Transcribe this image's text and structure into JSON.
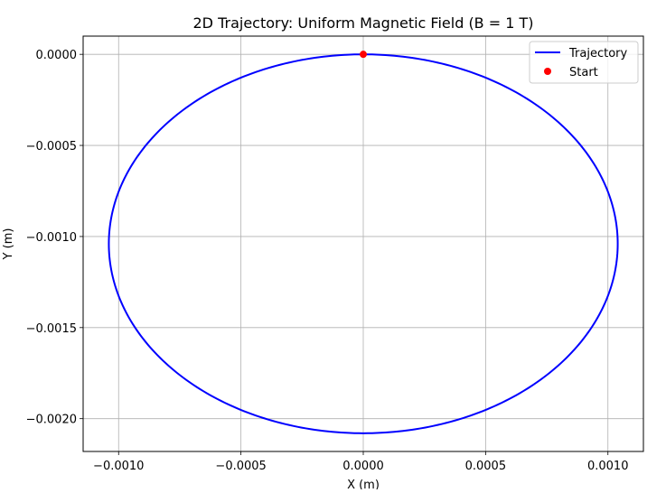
{
  "chart_data": {
    "type": "line",
    "title": "2D Trajectory: Uniform Magnetic Field (B = 1 T)",
    "xlabel": "X (m)",
    "ylabel": "Y (m)",
    "xlim": [
      -0.001145,
      0.001145
    ],
    "ylim": [
      -0.00218,
      0.0001
    ],
    "grid": true,
    "legend_position": "top-right",
    "x_ticks": [
      -0.001,
      -0.0005,
      0.0,
      0.0005,
      0.001
    ],
    "x_tick_labels": [
      "−0.0010",
      "−0.0005",
      "0.0000",
      "0.0005",
      "0.0010"
    ],
    "y_ticks": [
      0.0,
      -0.0005,
      -0.001,
      -0.0015,
      -0.002
    ],
    "y_tick_labels": [
      "0.0000",
      "−0.0005",
      "−0.0010",
      "−0.0015",
      "−0.0020"
    ],
    "series": [
      {
        "name": "Trajectory",
        "kind": "line",
        "color": "#0000ff",
        "shape": "circle",
        "center": [
          0.0,
          -0.00104
        ],
        "radius": 0.00104
      },
      {
        "name": "Start",
        "kind": "marker",
        "color": "#ff0000",
        "x": [
          0.0
        ],
        "y": [
          0.0
        ]
      }
    ]
  }
}
